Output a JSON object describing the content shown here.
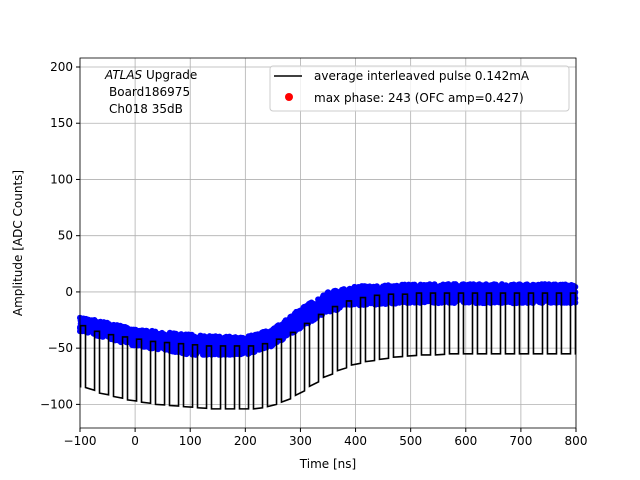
{
  "chart_data": {
    "type": "line",
    "xlabel": "Time [ns]",
    "ylabel": "Amplitude [ADC Counts]",
    "xlim": [
      -100,
      800
    ],
    "ylim": [
      -121,
      208
    ],
    "xticks": [
      -100,
      0,
      100,
      200,
      300,
      400,
      500,
      600,
      700,
      800
    ],
    "yticks": [
      -100,
      -50,
      0,
      50,
      100,
      150,
      200
    ],
    "grid": true,
    "legend_position": "top-right",
    "annotation": {
      "italic": "ATLAS",
      "rest": " Upgrade",
      "line2": "Board186975",
      "line3": "Ch018 35dB"
    },
    "series": [
      {
        "name": "average interleaved pulse 0.142mA",
        "color": "#000000",
        "pulse_high_duration_ns": 9,
        "pulses": [
          [
            -99,
            -30,
            -85
          ],
          [
            -73.6,
            -35,
            -90
          ],
          [
            -48.2,
            -38,
            -93
          ],
          [
            -22.8,
            -40,
            -96
          ],
          [
            2.6,
            -42,
            -98
          ],
          [
            28,
            -44,
            -100
          ],
          [
            53.4,
            -45,
            -101
          ],
          [
            78.8,
            -46,
            -102
          ],
          [
            104.2,
            -47,
            -103
          ],
          [
            129.6,
            -48,
            -104
          ],
          [
            155,
            -48,
            -104
          ],
          [
            180.4,
            -48,
            -104
          ],
          [
            205.8,
            -48,
            -104
          ],
          [
            231.2,
            -46,
            -102
          ],
          [
            256.6,
            -42,
            -98
          ],
          [
            282,
            -36,
            -92
          ],
          [
            307.4,
            -28,
            -84
          ],
          [
            332.8,
            -20,
            -76
          ],
          [
            358.2,
            -13,
            -70
          ],
          [
            383.6,
            -8,
            -65
          ],
          [
            409,
            -5,
            -62
          ],
          [
            434.4,
            -3,
            -60
          ],
          [
            459.8,
            -2,
            -58
          ],
          [
            485.2,
            -2,
            -57
          ],
          [
            510.6,
            -1,
            -56
          ],
          [
            536,
            -1,
            -56
          ],
          [
            561.4,
            -1,
            -55
          ],
          [
            586.8,
            -1,
            -55
          ],
          [
            612.2,
            -1,
            -55
          ],
          [
            637.6,
            -1,
            -55
          ],
          [
            663,
            -1,
            -55
          ],
          [
            688.4,
            -1,
            -55
          ],
          [
            713.8,
            -1,
            -55
          ],
          [
            739.2,
            -1,
            -55
          ],
          [
            764.6,
            -1,
            -55
          ],
          [
            790,
            -1,
            -55
          ]
        ]
      },
      {
        "name": "max phase: 243 (OFC amp=0.427)",
        "color": "#ff0000",
        "marker": "circle"
      },
      {
        "color": "#0000ff",
        "marker": "circle",
        "band": {
          "x": [
            -100,
            0,
            100,
            200,
            250,
            300,
            350,
            400,
            500,
            800
          ],
          "upper": [
            -22,
            -33,
            -38,
            -40,
            -33,
            -15,
            0,
            5,
            7,
            7
          ],
          "lower": [
            -35,
            -48,
            -56,
            -56,
            -48,
            -32,
            -18,
            -12,
            -10,
            -10
          ]
        }
      }
    ]
  }
}
